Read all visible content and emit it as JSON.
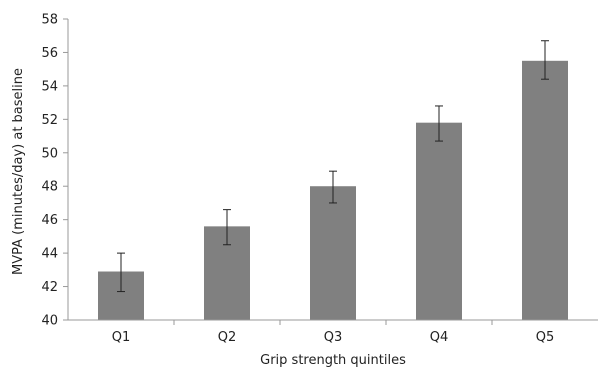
{
  "chart_data": {
    "type": "bar",
    "title": "",
    "xlabel": "Grip strength quintiles",
    "ylabel": "MVPA (minutes/day) at baseline",
    "categories": [
      "Q1",
      "Q2",
      "Q3",
      "Q4",
      "Q5"
    ],
    "values": [
      42.9,
      45.6,
      48.0,
      51.8,
      55.5
    ],
    "error_low": [
      41.7,
      44.5,
      47.0,
      50.7,
      54.4
    ],
    "error_high": [
      44.0,
      46.6,
      48.9,
      52.8,
      56.7
    ],
    "ylim": [
      40,
      58
    ],
    "yticks": [
      "40",
      "42",
      "44",
      "46",
      "48",
      "50",
      "52",
      "54",
      "56",
      "58"
    ],
    "grid": false,
    "legend": "none",
    "bar_color": "#808080",
    "axis_color": "#999999"
  }
}
